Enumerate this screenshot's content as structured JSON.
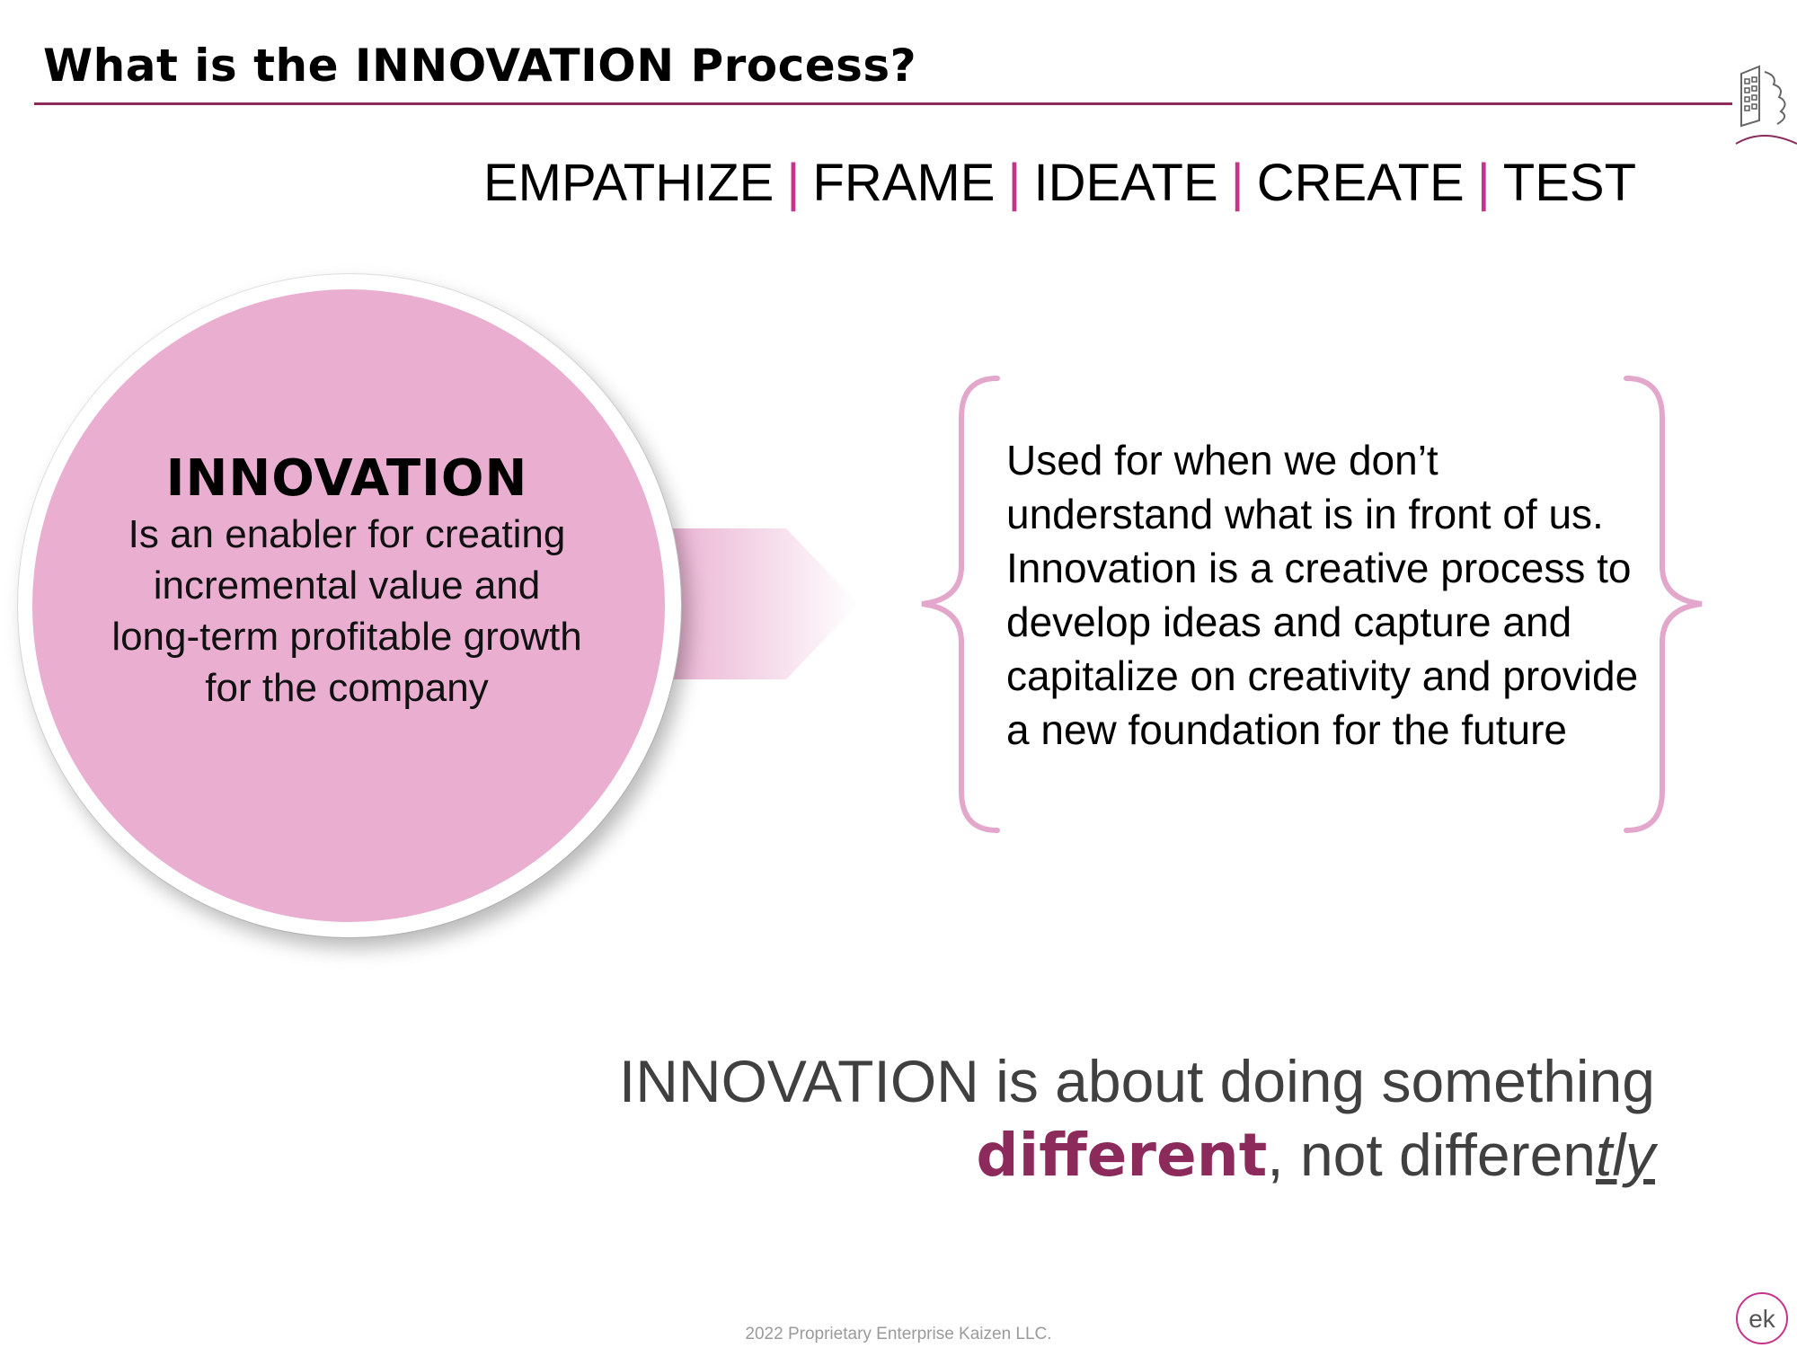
{
  "slide": {
    "title": "What is the INNOVATION Process?",
    "steps": [
      "EMPATHIZE",
      "FRAME",
      "IDEATE",
      "CREATE",
      "TEST"
    ],
    "separator": "|",
    "circle": {
      "heading": "INNOVATION",
      "body": "Is an enabler for creating incremental value and long-term profitable growth for the company"
    },
    "description": "Used for when we don’t understand what is in front of us.  Innovation is a creative process to develop ideas and capture and capitalize on creativity and provide a new foundation for the future",
    "tagline": {
      "line1": "INNOVATION is about doing something",
      "emphasis": "different",
      "middle": ", not differen",
      "suffix": "tly"
    },
    "footer": "2022 Proprietary Enterprise Kaizen LLC.",
    "logo_text": "ek"
  },
  "colors": {
    "accent": "#8c2a5c",
    "separator": "#c6338b",
    "circle_fill": "#e9aed0",
    "brace_stroke": "#e4a7cc"
  },
  "icons": {
    "top_right": "building-icon",
    "bottom_right": "ek-logo-icon"
  }
}
